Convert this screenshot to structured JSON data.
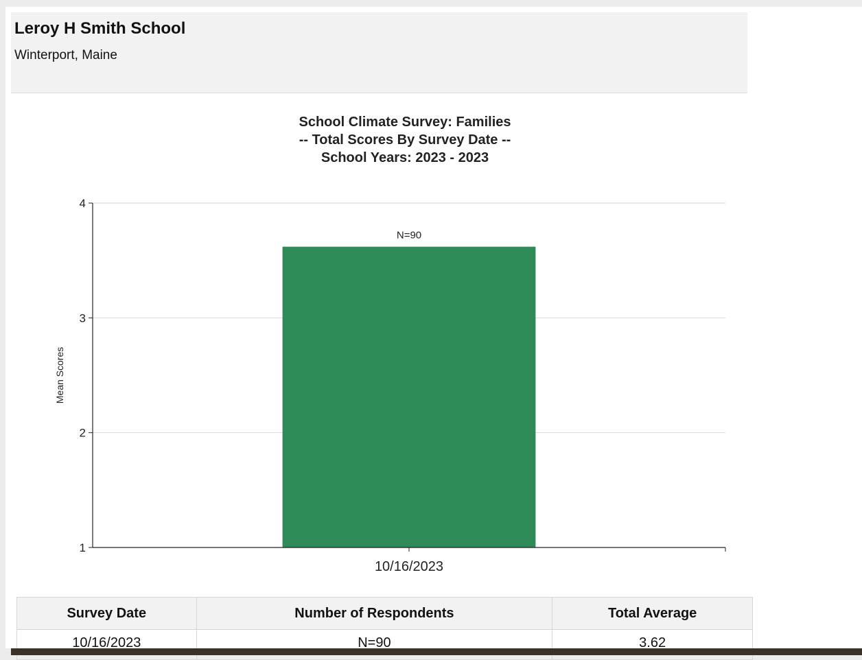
{
  "school": {
    "name": "Leroy H Smith School",
    "location": "Winterport, Maine"
  },
  "chart_data": {
    "type": "bar",
    "title_lines": [
      "School  Climate  Survey: Families",
      "-- Total Scores By Survey Date --",
      "School Years: 2023 - 2023"
    ],
    "categories": [
      "10/16/2023"
    ],
    "values": [
      3.62
    ],
    "data_labels": [
      "N=90"
    ],
    "xlabel": "",
    "ylabel": "Mean Scores",
    "ylim": [
      1,
      4
    ],
    "yticks": [
      1,
      2,
      3,
      4
    ],
    "grid": true,
    "bar_color": "#2e8b57"
  },
  "table": {
    "headers": [
      "Survey Date",
      "Number of Respondents",
      "Total Average"
    ],
    "rows": [
      [
        "10/16/2023",
        "N=90",
        "3.62"
      ]
    ]
  }
}
